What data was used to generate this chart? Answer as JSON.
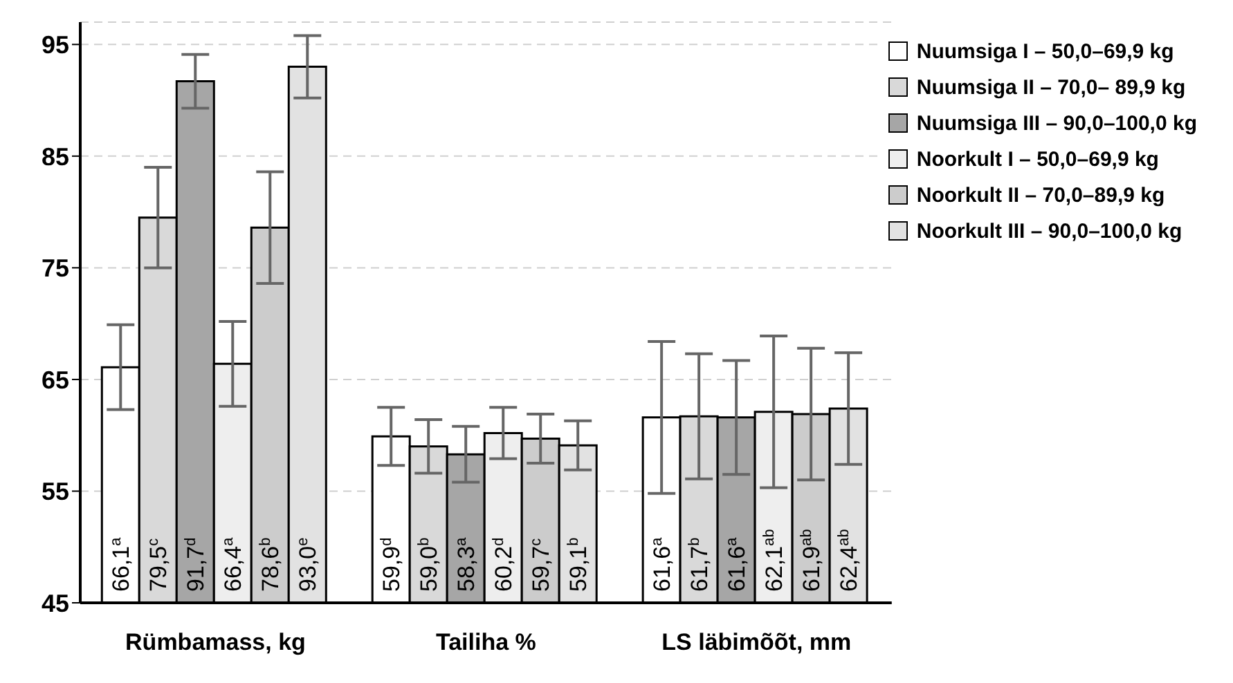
{
  "chart_data": {
    "type": "bar",
    "categories": [
      "Rümbamass, kg",
      "Tailiha %",
      "LS läbimõõt, mm"
    ],
    "series": [
      {
        "name": "Nuumsiga I – 50,0–69,9 kg",
        "color": "#ffffff",
        "values": [
          66.1,
          59.9,
          61.6
        ],
        "errors": [
          3.8,
          2.6,
          6.8
        ],
        "value_labels": [
          "66,1$^{a}$",
          "59,9$^{d}$",
          "61,6$^{a}$"
        ]
      },
      {
        "name": "Nuumsiga II – 70,0– 89,9 kg",
        "color": "#d9d9d9",
        "values": [
          79.5,
          59.0,
          61.7
        ],
        "errors": [
          4.5,
          2.4,
          5.6
        ],
        "value_labels": [
          "79,5$^{c}$",
          "59,0$^{b}$",
          "61,7$^{b}$"
        ]
      },
      {
        "name": "Nuumsiga III – 90,0–100,0 kg",
        "color": "#a6a6a6",
        "values": [
          91.7,
          58.3,
          61.6
        ],
        "errors": [
          2.4,
          2.5,
          5.1
        ],
        "value_labels": [
          "91,7$^{d}$",
          "58,3$^{a}$",
          "61,6$^{a}$"
        ]
      },
      {
        "name": "Noorkult I – 50,0–69,9 kg",
        "color": "#eeeeee",
        "values": [
          66.4,
          60.2,
          62.1
        ],
        "errors": [
          3.8,
          2.3,
          6.8
        ],
        "value_labels": [
          "66,4$^{a}$",
          "60,2$^{d}$",
          "62,1$^{ab}$"
        ]
      },
      {
        "name": "Noorkult II – 70,0–89,9 kg",
        "color": "#cccccc",
        "values": [
          78.6,
          59.7,
          61.9
        ],
        "errors": [
          5.0,
          2.2,
          5.9
        ],
        "value_labels": [
          "78,6$^{b}$",
          "59,7$^{c}$",
          "61,9$^{ab}$"
        ]
      },
      {
        "name": "Noorkult III – 90,0–100,0 kg",
        "color": "#e2e2e2",
        "values": [
          93.0,
          59.1,
          62.4
        ],
        "errors": [
          2.8,
          2.2,
          5.0
        ],
        "value_labels": [
          "93,0$^{e}$",
          "59,1$^{b}$",
          "62,4$^{ab}$"
        ]
      }
    ],
    "ylim": [
      45,
      97
    ],
    "yticks": [
      45,
      55,
      65,
      75,
      85,
      95
    ],
    "grid": "y",
    "legend": "top right"
  }
}
